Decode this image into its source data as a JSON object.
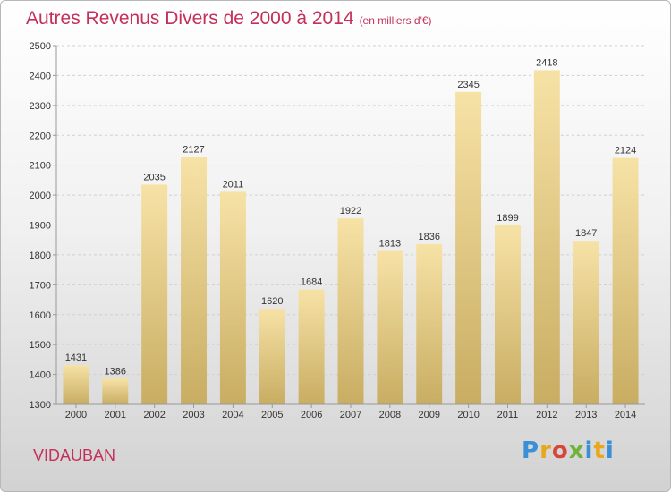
{
  "header": {
    "title": "Autres Revenus Divers de 2000 à 2014",
    "unit": "(en milliers d'€)"
  },
  "footer": {
    "city": "VIDAUBAN",
    "logo": "Proxiti"
  },
  "colors": {
    "title": "#c4305a",
    "bar_top": "#f7e2a6",
    "bar_bottom": "#c8ad62",
    "grid": "#d0d0d0"
  },
  "chart_data": {
    "type": "bar",
    "title": "Autres Revenus Divers de 2000 à 2014",
    "xlabel": "",
    "ylabel": "",
    "ylim": [
      1300,
      2500
    ],
    "yticks": [
      1300,
      1400,
      1500,
      1600,
      1700,
      1800,
      1900,
      2000,
      2100,
      2200,
      2300,
      2400,
      2500
    ],
    "grid": true,
    "categories": [
      "2000",
      "2001",
      "2002",
      "2003",
      "2004",
      "2005",
      "2006",
      "2007",
      "2008",
      "2009",
      "2010",
      "2011",
      "2012",
      "2013",
      "2014"
    ],
    "values": [
      1431,
      1386,
      2035,
      2127,
      2011,
      1620,
      1684,
      1922,
      1813,
      1836,
      2345,
      1899,
      2418,
      1847,
      2124
    ]
  }
}
